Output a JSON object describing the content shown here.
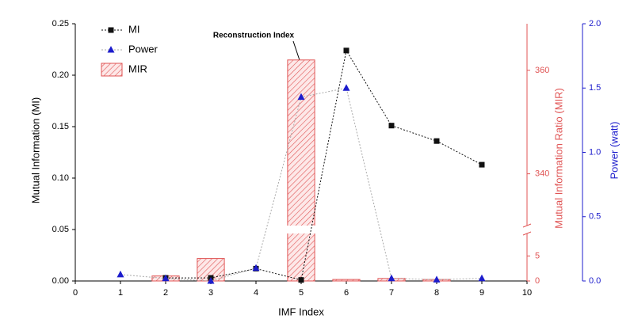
{
  "chart_data": {
    "type": "multi-axis",
    "annotation": "Reconstruction Index",
    "x_label": "IMF Index",
    "y_label": "Mutual Information (MI)",
    "y2_label": "Mutual Information Ratio (MIR)",
    "y3_label": "Power (watt)",
    "x": [
      1,
      2,
      3,
      4,
      5,
      6,
      7,
      8,
      9
    ],
    "xlim": [
      0,
      10
    ],
    "xticks": [
      0,
      1,
      2,
      3,
      4,
      5,
      6,
      7,
      8,
      9,
      10
    ],
    "ylim": [
      0,
      0.25
    ],
    "yticks": [
      {
        "value": 0,
        "label": "0.00"
      },
      {
        "value": 0.05,
        "label": "0.05"
      },
      {
        "value": 0.1,
        "label": "0.10"
      },
      {
        "value": 0.15,
        "label": "0.15"
      },
      {
        "value": 0.2,
        "label": "0.20"
      },
      {
        "value": 0.25,
        "label": "0.25"
      }
    ],
    "y2lim": [
      0,
      369
    ],
    "y2_break": [
      9.5,
      330
    ],
    "y2ticks": [
      0,
      5,
      340,
      360
    ],
    "y3lim": [
      0,
      2
    ],
    "y3ticks": [
      {
        "value": 0,
        "label": "0.0"
      },
      {
        "value": 0.5,
        "label": "0.5"
      },
      {
        "value": 1,
        "label": "1.0"
      },
      {
        "value": 1.5,
        "label": "1.5"
      },
      {
        "value": 2,
        "label": "2.0"
      }
    ],
    "series": [
      {
        "name": "MI",
        "kind": "line",
        "axis": "y",
        "color": "#111111",
        "values": [
          null,
          0.003,
          0.003,
          0.012,
          0.001,
          0.224,
          0.151,
          0.136,
          0.113
        ]
      },
      {
        "name": "Power",
        "kind": "line",
        "axis": "y3",
        "color": "#1c1ccc",
        "values": [
          0.05,
          0.02,
          0.0,
          0.1,
          1.43,
          1.5,
          0.02,
          0.01,
          0.02
        ]
      },
      {
        "name": "MIR",
        "kind": "bar",
        "axis": "y2",
        "color": "#e05555",
        "values": [
          null,
          1,
          4.5,
          null,
          362,
          0.3,
          0.5,
          0.3,
          null
        ]
      }
    ]
  }
}
